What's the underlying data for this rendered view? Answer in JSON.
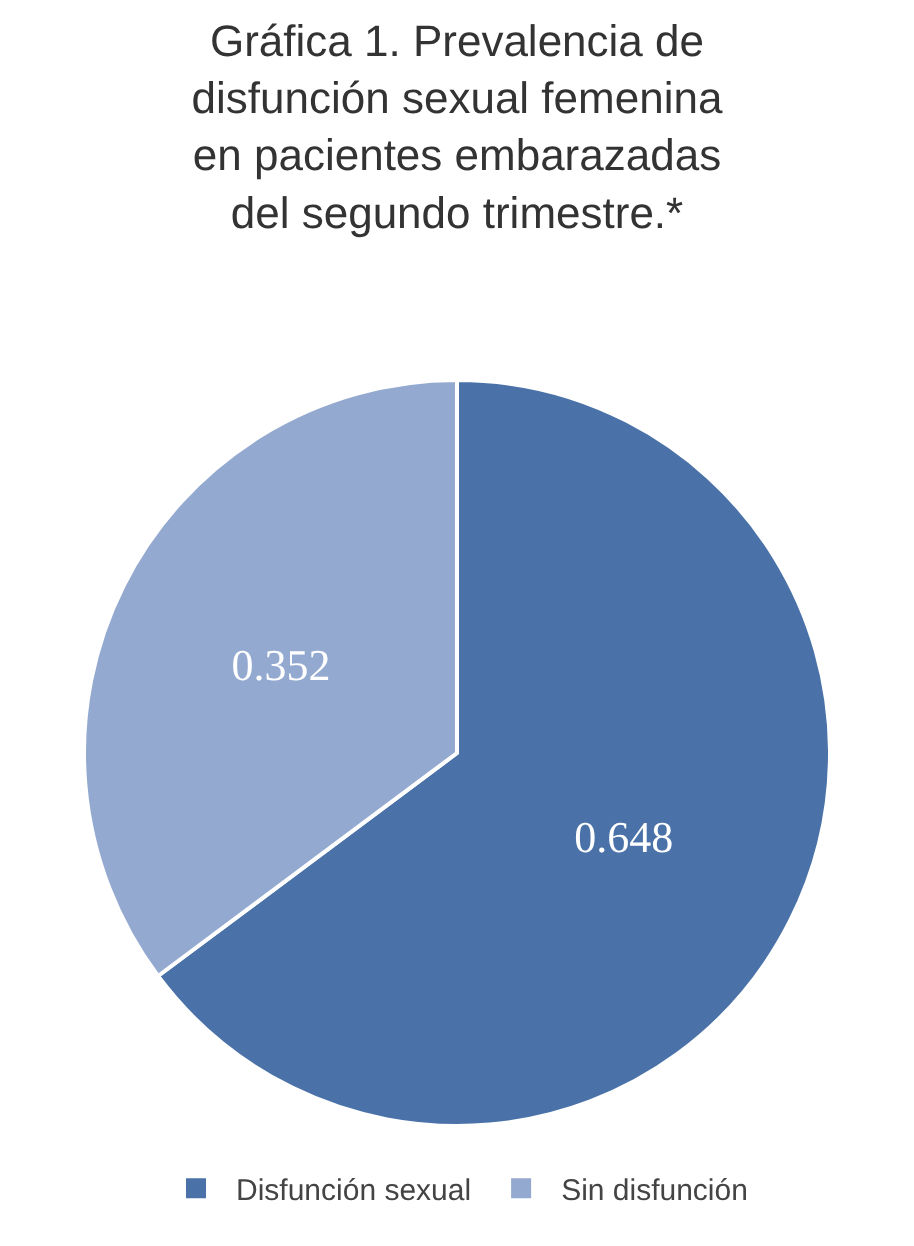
{
  "chart_data": {
    "type": "pie",
    "title": "Gráfica 1. Prevalencia de\ndisfunción sexual femenina\nen pacientes embarazadas\ndel segundo trimestre.*",
    "categories": [
      "Disfunción sexual",
      "Sin disfunción"
    ],
    "values": [
      0.648,
      0.352
    ],
    "colors": [
      "#4a72a8",
      "#93a9d0"
    ],
    "data_labels": true,
    "legend": "bottom"
  }
}
